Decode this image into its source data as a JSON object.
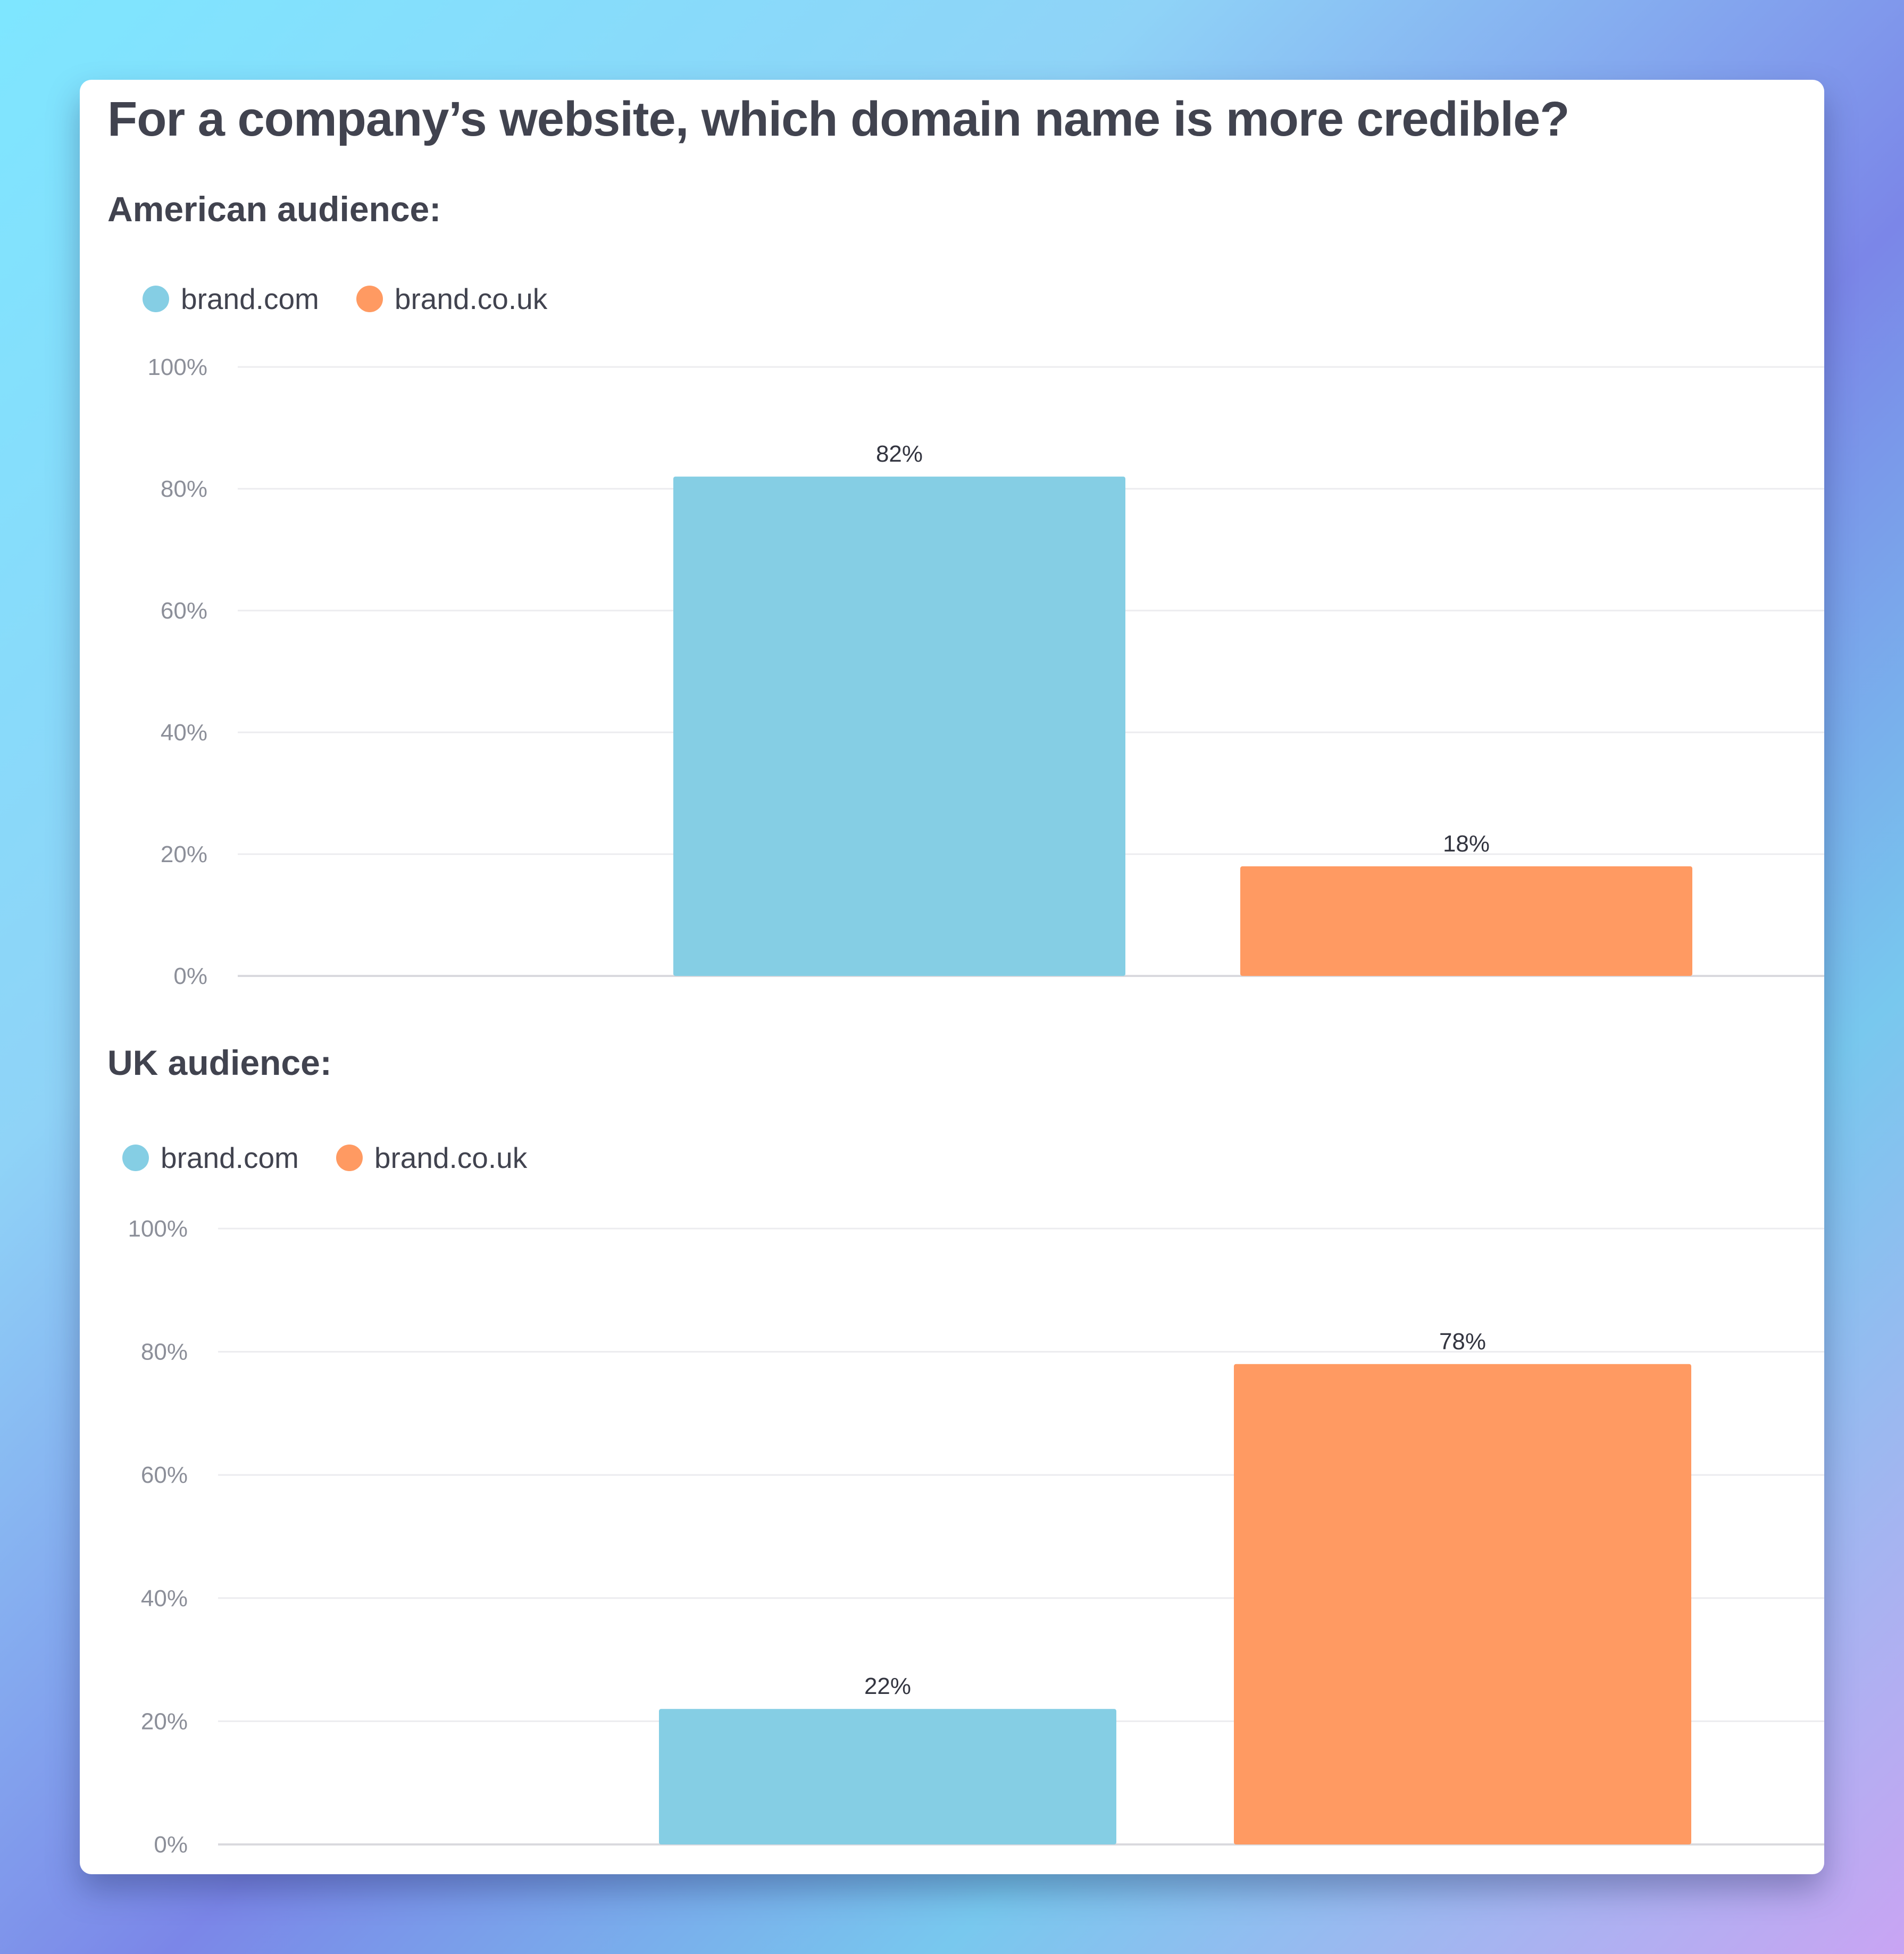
{
  "title": "For a company’s website, which domain name is more credible?",
  "colors": {
    "brand_com": "#85cee4",
    "brand_co_uk": "#ff9a62"
  },
  "chart_data": [
    {
      "type": "bar",
      "subtitle": "American audience:",
      "legend": [
        "brand.com",
        "brand.co.uk"
      ],
      "series": [
        {
          "name": "brand.com",
          "value": 82,
          "label": "82%"
        },
        {
          "name": "brand.co.uk",
          "value": 18,
          "label": "18%"
        }
      ],
      "ylim": [
        0,
        100
      ],
      "yticks": [
        "0%",
        "20%",
        "40%",
        "60%",
        "80%",
        "100%"
      ],
      "grid": true,
      "legend_position": "top-left"
    },
    {
      "type": "bar",
      "subtitle": "UK audience:",
      "legend": [
        "brand.com",
        "brand.co.uk"
      ],
      "series": [
        {
          "name": "brand.com",
          "value": 22,
          "label": "22%"
        },
        {
          "name": "brand.co.uk",
          "value": 78,
          "label": "78%"
        }
      ],
      "ylim": [
        0,
        100
      ],
      "yticks": [
        "0%",
        "20%",
        "40%",
        "60%",
        "80%",
        "100%"
      ],
      "grid": true,
      "legend_position": "top-left"
    }
  ]
}
